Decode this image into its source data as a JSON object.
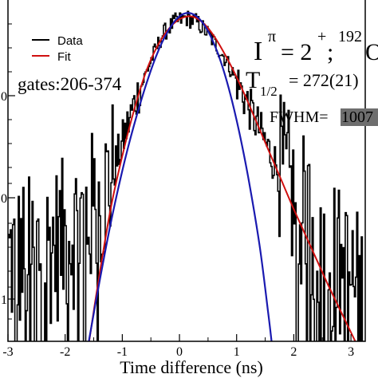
{
  "chart_data": {
    "type": "line",
    "xlabel": "Time difference (ns)",
    "ylabel": "",
    "x_ticks": [
      "-3",
      "-2",
      "-1",
      "0",
      "1",
      "2",
      "3"
    ],
    "xlim": [
      -3.0,
      3.25
    ],
    "y_scale": "log",
    "ylim_log10": [
      0.65,
      2.95
    ],
    "y_tick_partial_labels": [
      "0",
      "0",
      "1"
    ],
    "legend": {
      "position": "top-left",
      "entries": [
        {
          "name": "Data",
          "color": "#000000"
        },
        {
          "name": "Fit",
          "color": "#d01010"
        }
      ]
    },
    "annotations": {
      "gates": "gates:206-374",
      "spin_line": "I",
      "spin_sup": "π",
      "spin_eq": "= 2",
      "spin_plus": "+",
      "spin_semi": ";",
      "mass_sup": "192",
      "nucleus": "O",
      "half_T": "T",
      "half_sub": "1/2",
      "half_val": "= 272(21)",
      "fwhm_label": "FWHM=",
      "fwhm_val": "1007"
    },
    "series": [
      {
        "name": "Data",
        "color": "#000000",
        "x_step": 0.02,
        "x": [
          -3.0,
          3.25
        ],
        "description_points": [
          [
            -3.0,
            1.2
          ],
          [
            -2.5,
            1.25
          ],
          [
            -2.0,
            1.35
          ],
          [
            -1.5,
            1.55
          ],
          [
            -1.2,
            1.75
          ],
          [
            -1.0,
            2.0
          ],
          [
            -0.8,
            2.25
          ],
          [
            -0.5,
            2.55
          ],
          [
            -0.3,
            2.72
          ],
          [
            -0.1,
            2.8
          ],
          [
            0.1,
            2.83
          ],
          [
            0.3,
            2.8
          ],
          [
            0.5,
            2.72
          ],
          [
            0.8,
            2.55
          ],
          [
            1.0,
            2.4
          ],
          [
            1.3,
            2.15
          ],
          [
            1.6,
            1.9
          ],
          [
            2.0,
            1.6
          ],
          [
            2.5,
            1.3
          ],
          [
            3.0,
            1.05
          ],
          [
            3.25,
            0.95
          ]
        ]
      },
      {
        "name": "Fit",
        "color": "#d01010",
        "points": [
          [
            -1.6,
            0.6
          ],
          [
            -1.4,
            1.1
          ],
          [
            -1.2,
            1.55
          ],
          [
            -1.0,
            1.9
          ],
          [
            -0.8,
            2.2
          ],
          [
            -0.6,
            2.45
          ],
          [
            -0.4,
            2.63
          ],
          [
            -0.2,
            2.75
          ],
          [
            0.0,
            2.82
          ],
          [
            0.2,
            2.84
          ],
          [
            0.4,
            2.8
          ],
          [
            0.6,
            2.71
          ],
          [
            0.8,
            2.58
          ],
          [
            1.0,
            2.43
          ],
          [
            1.2,
            2.26
          ],
          [
            1.4,
            2.08
          ],
          [
            1.6,
            1.9
          ],
          [
            1.8,
            1.72
          ],
          [
            2.0,
            1.54
          ],
          [
            2.2,
            1.37
          ],
          [
            2.4,
            1.2
          ],
          [
            2.6,
            1.03
          ],
          [
            2.8,
            0.87
          ],
          [
            3.0,
            0.71
          ],
          [
            3.2,
            0.55
          ]
        ]
      },
      {
        "name": "",
        "color": "#1a1ab0",
        "points": [
          [
            -1.6,
            0.62
          ],
          [
            -1.4,
            1.05
          ],
          [
            -1.2,
            1.45
          ],
          [
            -1.0,
            1.8
          ],
          [
            -0.8,
            2.1
          ],
          [
            -0.6,
            2.36
          ],
          [
            -0.4,
            2.58
          ],
          [
            -0.2,
            2.74
          ],
          [
            0.0,
            2.84
          ],
          [
            0.2,
            2.86
          ],
          [
            0.4,
            2.8
          ],
          [
            0.6,
            2.66
          ],
          [
            0.8,
            2.44
          ],
          [
            1.0,
            2.14
          ],
          [
            1.2,
            1.76
          ],
          [
            1.4,
            1.3
          ],
          [
            1.55,
            0.85
          ],
          [
            1.62,
            0.62
          ]
        ]
      }
    ]
  }
}
